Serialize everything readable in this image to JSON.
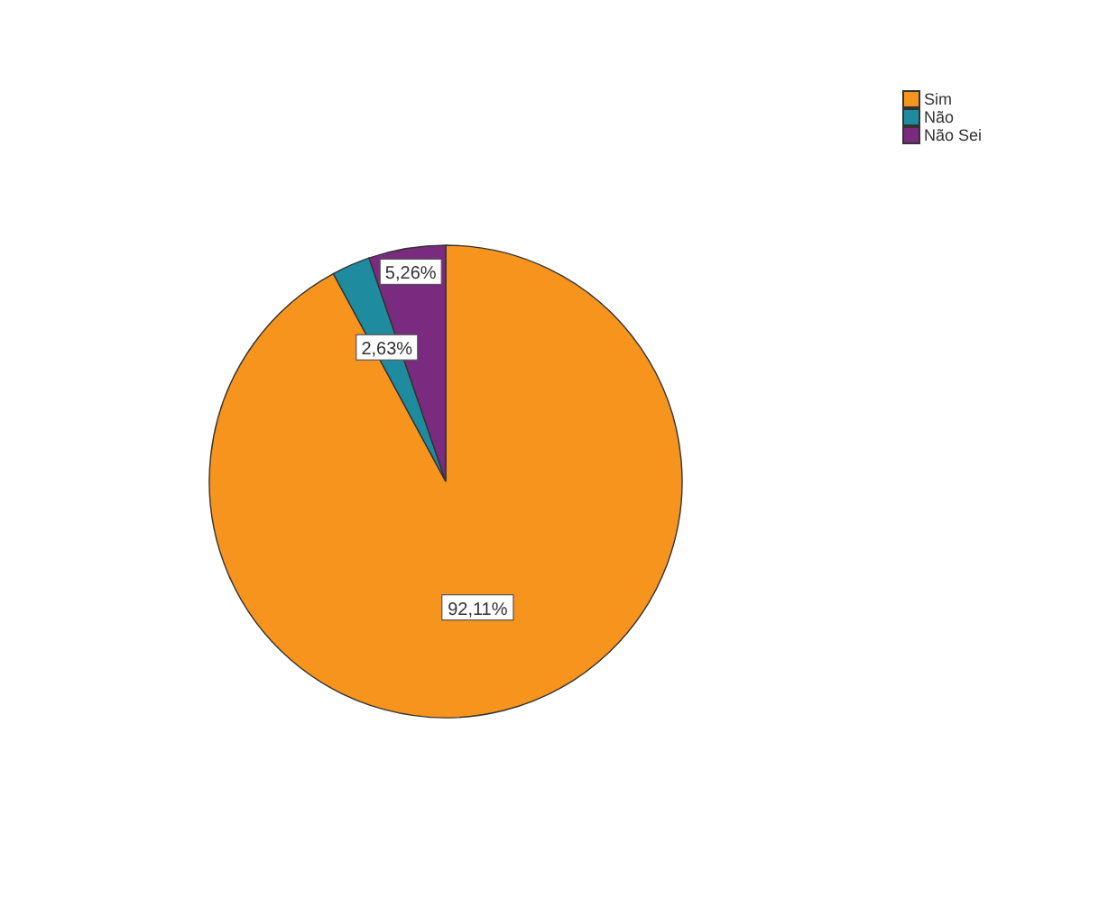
{
  "chart_data": {
    "type": "pie",
    "categories": [
      "Sim",
      "Não",
      "Não Sei"
    ],
    "values": [
      92.11,
      2.63,
      5.26
    ],
    "colors": [
      "#f7941d",
      "#1f8b9e",
      "#7a2a7f"
    ],
    "value_labels": [
      "92,11%",
      "2,63%",
      "5,26%"
    ],
    "legend": "top right"
  }
}
